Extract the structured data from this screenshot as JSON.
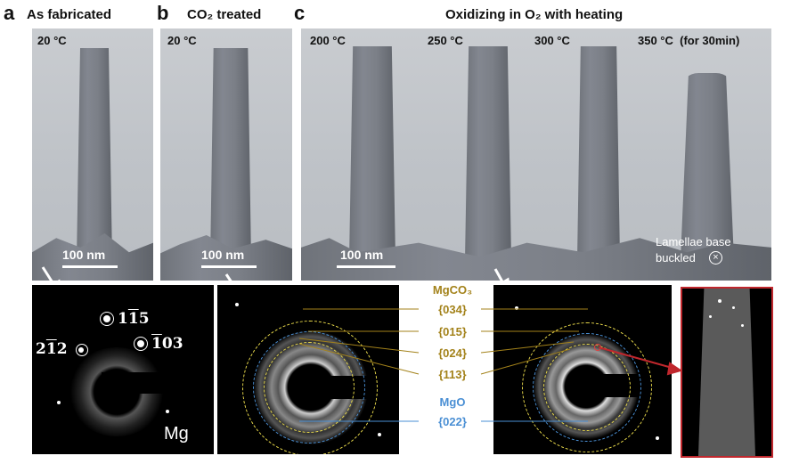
{
  "panels": {
    "a": {
      "letter": "a",
      "title": "As fabricated",
      "temp": "20 °C",
      "scalebar": "100 nm"
    },
    "b": {
      "letter": "b",
      "title": "CO₂ treated",
      "temp": "20 °C",
      "scalebar": "100 nm"
    },
    "c": {
      "letter": "c",
      "title": "Oxidizing in O₂ with heating",
      "temps": [
        "200 °C",
        "250 °C",
        "300 °C",
        "350 °C  (for 30min)"
      ],
      "scalebar": "100 nm",
      "note_line1": "Lamellae base",
      "note_line2": "buckled"
    }
  },
  "diffraction": {
    "mg_label": "Mg",
    "indices": {
      "i115": {
        "a": "1",
        "b": "1",
        "c": "5"
      },
      "i212": {
        "a": "2",
        "b": "1",
        "c": "2"
      },
      "i103": {
        "a": "1",
        "b": "0",
        "c": "3"
      }
    }
  },
  "annotations": {
    "mgco3": "MgCO₃",
    "rings": [
      "{034}",
      "{015}",
      "{024}",
      "{113}"
    ],
    "mgo": "MgO",
    "mgo_ring": "{022}"
  },
  "colors": {
    "mgco3": "#a3821a",
    "mgo": "#4a8fd4",
    "inset_border": "#c0272d"
  }
}
